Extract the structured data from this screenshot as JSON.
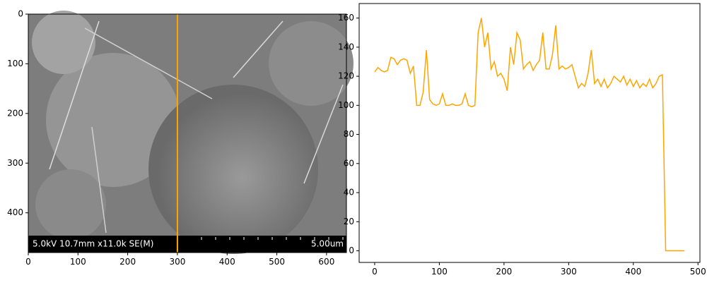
{
  "chart_data": [
    {
      "type": "image",
      "xlim": [
        0,
        640
      ],
      "ylim": [
        480,
        0
      ],
      "xticks": [
        0,
        100,
        200,
        300,
        400,
        500,
        600
      ],
      "yticks": [
        0,
        100,
        200,
        300,
        400
      ],
      "line_x": 300,
      "line_color": "#ffa500",
      "banner_text": "5.0kV 10.7mm x11.0k SE(M)",
      "scale_text": "5.00um"
    },
    {
      "type": "line",
      "xlim": [
        -24,
        503
      ],
      "ylim": [
        -8,
        170
      ],
      "xticks": [
        0,
        100,
        200,
        300,
        400,
        500
      ],
      "yticks": [
        0,
        20,
        40,
        60,
        80,
        100,
        120,
        140,
        160
      ],
      "color": "#ffa500",
      "x": [
        0,
        5,
        10,
        15,
        20,
        25,
        30,
        35,
        40,
        45,
        50,
        55,
        60,
        65,
        70,
        75,
        80,
        85,
        90,
        95,
        100,
        105,
        110,
        115,
        120,
        125,
        130,
        135,
        140,
        145,
        150,
        155,
        160,
        165,
        170,
        175,
        180,
        185,
        190,
        195,
        200,
        205,
        210,
        215,
        220,
        225,
        230,
        235,
        240,
        245,
        250,
        255,
        260,
        265,
        270,
        275,
        280,
        285,
        290,
        295,
        300,
        305,
        310,
        315,
        320,
        325,
        330,
        335,
        340,
        345,
        350,
        355,
        360,
        365,
        370,
        375,
        380,
        385,
        390,
        395,
        400,
        405,
        410,
        415,
        420,
        425,
        430,
        435,
        440,
        445,
        450,
        455,
        460,
        465,
        470,
        475,
        479
      ],
      "values": [
        123,
        126,
        124,
        123,
        124,
        133,
        132,
        128,
        131,
        132,
        131,
        122,
        127,
        100,
        100,
        109,
        138,
        104,
        101,
        100,
        101,
        108,
        100,
        100,
        101,
        100,
        100,
        101,
        108,
        100,
        99,
        100,
        150,
        160,
        140,
        150,
        125,
        130,
        120,
        122,
        118,
        110,
        140,
        128,
        150,
        145,
        125,
        128,
        130,
        124,
        128,
        131,
        150,
        125,
        125,
        135,
        155,
        125,
        127,
        125,
        126,
        128,
        120,
        112,
        115,
        113,
        122,
        138,
        115,
        118,
        113,
        118,
        112,
        115,
        120,
        118,
        116,
        120,
        114,
        118,
        113,
        117,
        112,
        115,
        113,
        118,
        112,
        115,
        120,
        121,
        0,
        0,
        0,
        0,
        0,
        0,
        0
      ]
    }
  ]
}
